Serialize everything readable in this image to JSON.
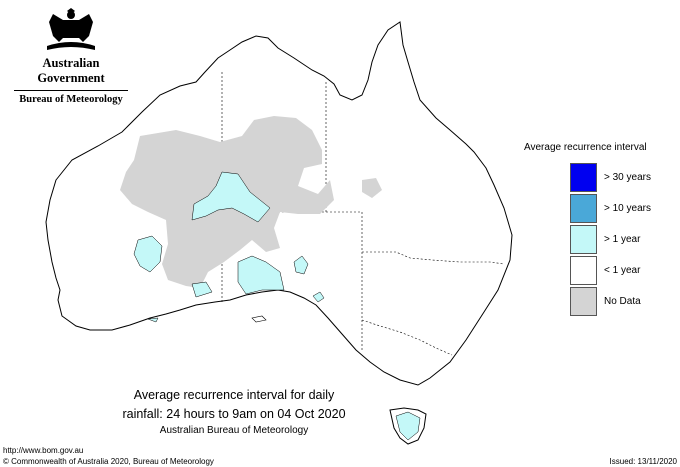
{
  "header": {
    "government": "Australian Government",
    "bureau": "Bureau of Meteorology"
  },
  "legend": {
    "title": "Average recurrence interval",
    "items": [
      {
        "label": "> 30 years",
        "color": "#0000f0"
      },
      {
        "label": "> 10 years",
        "color": "#4aa8d8"
      },
      {
        "label": "> 1 year",
        "color": "#c4f8f8"
      },
      {
        "label": "< 1 year",
        "color": "#ffffff"
      },
      {
        "label": "No Data",
        "color": "#d4d4d4"
      }
    ]
  },
  "caption": {
    "line1": "Average recurrence interval for daily",
    "line2": "rainfall: 24 hours to 9am on 04 Oct 2020",
    "line3": "Australian Bureau of Meteorology"
  },
  "footer": {
    "url": "http://www.bom.gov.au",
    "copyright": "© Commonwealth of Australia 2020, Bureau of Meteorology",
    "issued": "Issued: 13/11/2020"
  },
  "colors": {
    "no_data": "#d4d4d4",
    "gt_1_year": "#c4f8f8",
    "coast": "#000000"
  }
}
